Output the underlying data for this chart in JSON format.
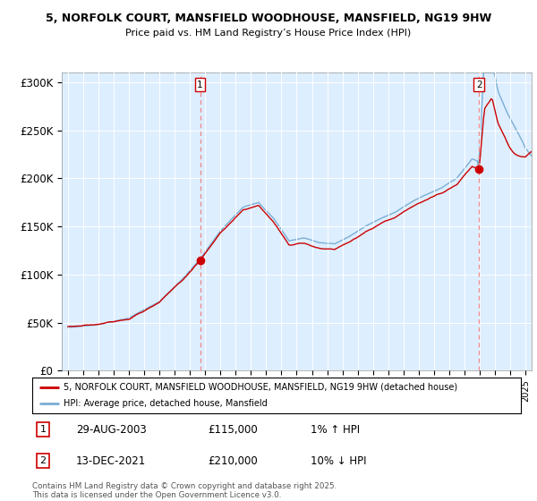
{
  "title_line1": "5, NORFOLK COURT, MANSFIELD WOODHOUSE, MANSFIELD, NG19 9HW",
  "title_line2": "Price paid vs. HM Land Registry’s House Price Index (HPI)",
  "ylim": [
    0,
    310000
  ],
  "yticks": [
    0,
    50000,
    100000,
    150000,
    200000,
    250000,
    300000
  ],
  "ytick_labels": [
    "£0",
    "£50K",
    "£100K",
    "£150K",
    "£200K",
    "£250K",
    "£300K"
  ],
  "hpi_color": "#7aaed4",
  "price_color": "#cc0000",
  "marker_color": "#cc0000",
  "vline_color": "#ee8888",
  "legend_line1": "5, NORFOLK COURT, MANSFIELD WOODHOUSE, MANSFIELD, NG19 9HW (detached house)",
  "legend_line2": "HPI: Average price, detached house, Mansfield",
  "footer": "Contains HM Land Registry data © Crown copyright and database right 2025.\nThis data is licensed under the Open Government Licence v3.0.",
  "background_color": "#ffffff",
  "plot_bg_color": "#ddeeff",
  "grid_color": "#ffffff",
  "sale1_year": 2003.667,
  "sale1_price": 115000,
  "sale2_year": 2021.958,
  "sale2_price": 210000,
  "xstart": 1995,
  "xend": 2025
}
